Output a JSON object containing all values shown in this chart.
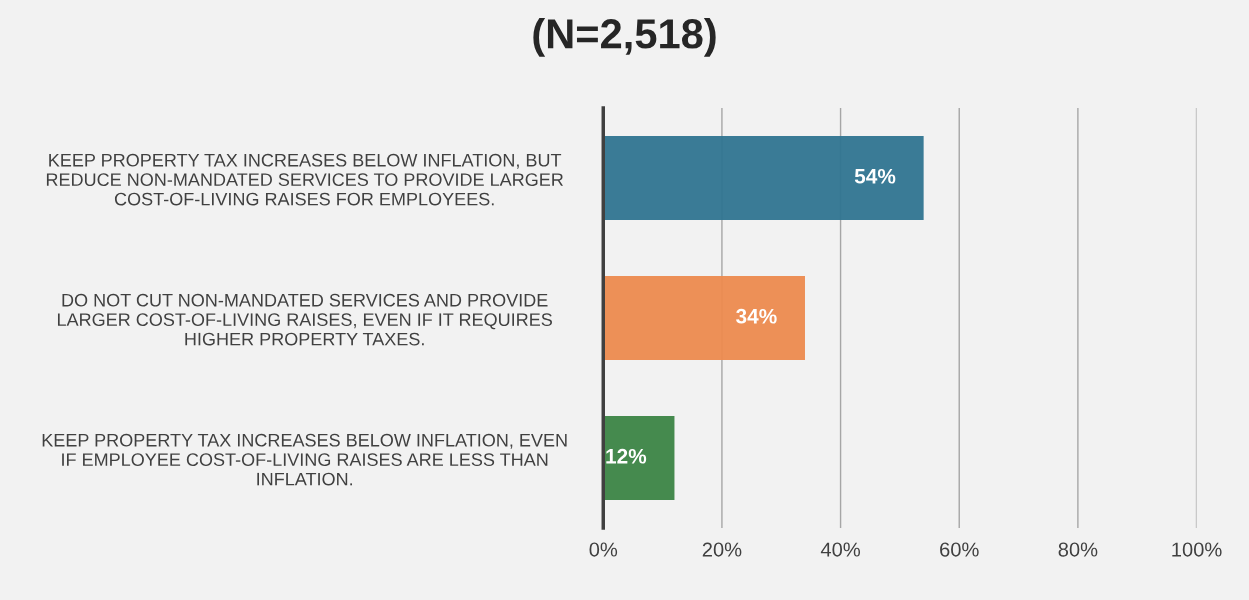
{
  "chart_data": {
    "type": "bar",
    "orientation": "horizontal",
    "title": "(N=2,518)",
    "categories": [
      "KEEP PROPERTY TAX INCREASES BELOW INFLATION, BUT\nREDUCE NON-MANDATED SERVICES TO PROVIDE LARGER\nCOST-OF-LIVING RAISES FOR EMPLOYEES.",
      "DO NOT CUT NON-MANDATED SERVICES AND PROVIDE\nLARGER COST-OF-LIVING RAISES, EVEN IF IT REQUIRES\nHIGHER PROPERTY TAXES.",
      "KEEP PROPERTY TAX INCREASES BELOW INFLATION, EVEN\nIF EMPLOYEE COST-OF-LIVING RAISES ARE LESS THAN\nINFLATION."
    ],
    "values": [
      54,
      34,
      12
    ],
    "colors": [
      "#2f7490",
      "#ec8a4e",
      "#3b8444"
    ],
    "value_labels": [
      "54%",
      "34%",
      "12%"
    ],
    "xlim": [
      0,
      100
    ],
    "xticks": [
      {
        "value": 0,
        "label": "0%"
      },
      {
        "value": 20,
        "label": "20%"
      },
      {
        "value": 40,
        "label": "40%"
      },
      {
        "value": 60,
        "label": "60%"
      },
      {
        "value": 80,
        "label": "80%"
      },
      {
        "value": 100,
        "label": "100%"
      }
    ],
    "grid": "x"
  }
}
